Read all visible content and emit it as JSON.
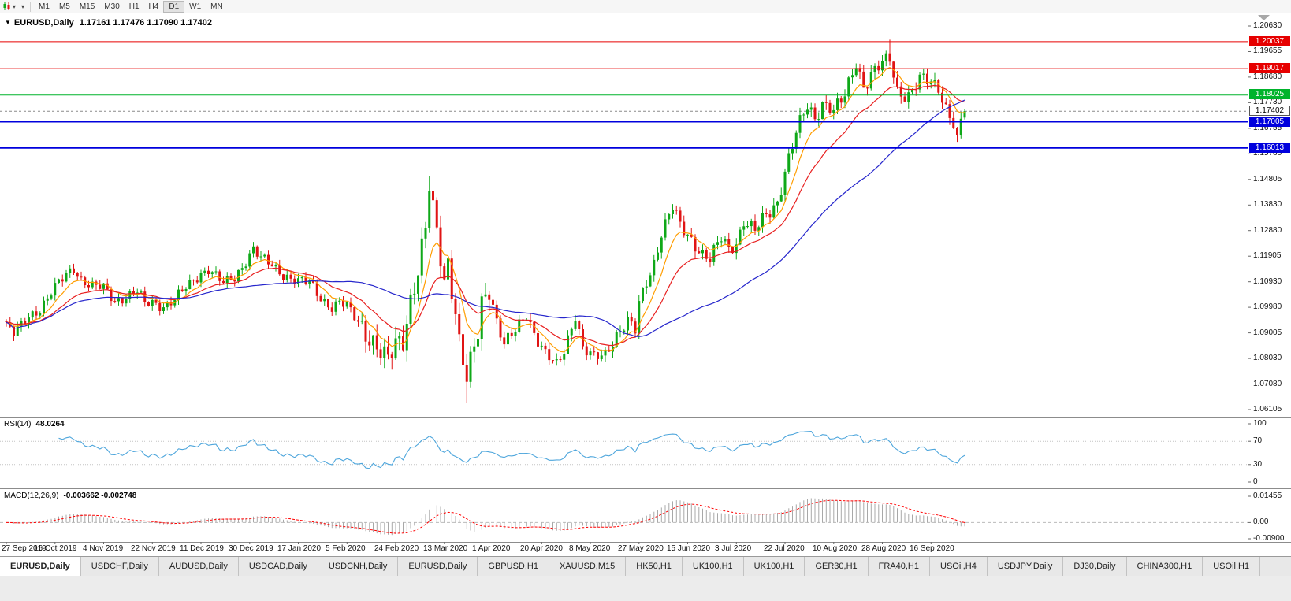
{
  "toolbar": {
    "caret_glyph": "▾",
    "timeframes": [
      "M1",
      "M5",
      "M15",
      "M30",
      "H1",
      "H4",
      "D1",
      "W1",
      "MN"
    ],
    "active_timeframe": "D1"
  },
  "chart": {
    "marker_glyph": "▼",
    "symbol_title": "EURUSD,Daily",
    "ohlc_text": "1.17161 1.17476 1.17090 1.17402",
    "current_price": {
      "label": "1.17402",
      "value": 1.17402
    }
  },
  "price_axis": {
    "ticks": [
      "1.20630",
      "1.19655",
      "1.18680",
      "1.17730",
      "1.16755",
      "1.15780",
      "1.14805",
      "1.13830",
      "1.12880",
      "1.11905",
      "1.10930",
      "1.09980",
      "1.09005",
      "1.08030",
      "1.07080",
      "1.06105"
    ]
  },
  "levels": [
    {
      "label": "1.20037",
      "value": 1.20037,
      "color": "#e60000",
      "thickness": 1
    },
    {
      "label": "1.19017",
      "value": 1.19017,
      "color": "#e60000",
      "thickness": 1
    },
    {
      "label": "1.18025",
      "value": 1.18025,
      "color": "#00b32c",
      "thickness": 2
    },
    {
      "label": "1.17005",
      "value": 1.17005,
      "color": "#0000dd",
      "thickness": 2
    },
    {
      "label": "1.16013",
      "value": 1.16013,
      "color": "#0000dd",
      "thickness": 2
    }
  ],
  "rsi_panel": {
    "name_label": "RSI(14)",
    "value_label": "48.0264",
    "line_color": "#4ea6dc",
    "levels": [
      {
        "label": "100",
        "value": 100
      },
      {
        "label": "70",
        "value": 70
      },
      {
        "label": "30",
        "value": 30
      },
      {
        "label": "0",
        "value": 0
      }
    ]
  },
  "macd_panel": {
    "name_label": "MACD(12,26,9)",
    "value_label": "-0.003662 -0.002748",
    "histogram_color": "#a8a8a8",
    "signal_color": "#ff0000",
    "ticks": [
      {
        "label": "0.01455",
        "value": 0.01455
      },
      {
        "label": "0.00",
        "value": 0
      },
      {
        "label": "-0.00900",
        "value": -0.009
      }
    ]
  },
  "time_axis": {
    "bars_per_label": 13,
    "labels": [
      "27 Sep 2019",
      "16 Oct 2019",
      "4 Nov 2019",
      "22 Nov 2019",
      "11 Dec 2019",
      "30 Dec 2019",
      "17 Jan 2020",
      "5 Feb 2020",
      "24 Feb 2020",
      "13 Mar 2020",
      "1 Apr 2020",
      "20 Apr 2020",
      "8 May 2020",
      "27 May 2020",
      "15 Jun 2020",
      "3 Jul 2020",
      "22 Jul 2020",
      "10 Aug 2020",
      "28 Aug 2020",
      "16 Sep 2020"
    ]
  },
  "tabs": {
    "active_index": 0,
    "items": [
      "EURUSD,Daily",
      "USDCHF,Daily",
      "AUDUSD,Daily",
      "USDCAD,Daily",
      "USDCNH,Daily",
      "EURUSD,Daily",
      "GBPUSD,H1",
      "XAUUSD,M15",
      "HK50,H1",
      "UK100,H1",
      "UK100,H1",
      "GER30,H1",
      "FRA40,H1",
      "USOil,H4",
      "USDJPY,Daily",
      "DJ30,Daily",
      "CHINA300,H1",
      "USOil,H1"
    ]
  },
  "chart_data": {
    "type": "candlestick",
    "symbol": "EURUSD",
    "timeframe": "Daily",
    "bars": 257,
    "y_domain": [
      1.06105,
      1.2063
    ],
    "last_candle": {
      "open": 1.17161,
      "high": 1.17476,
      "low": 1.1709,
      "close": 1.17402
    },
    "candle_up_color": "#0fa818",
    "candle_down_color": "#e01414",
    "rsi_period": 14,
    "macd_params": [
      12,
      26,
      9
    ],
    "moving_averages": [
      {
        "name": "fast",
        "method": "ema",
        "period": 8,
        "color": "#ff9d00"
      },
      {
        "name": "medium",
        "method": "ema",
        "period": 20,
        "color": "#e82020"
      },
      {
        "name": "slow",
        "method": "sma",
        "period": 50,
        "color": "#2626cc"
      }
    ],
    "close_path_anchors": [
      [
        0,
        1.093
      ],
      [
        2,
        1.0895
      ],
      [
        4,
        1.0925
      ],
      [
        6,
        1.0965
      ],
      [
        9,
        1.0995
      ],
      [
        13,
        1.107
      ],
      [
        16,
        1.112
      ],
      [
        18,
        1.115
      ],
      [
        20,
        1.1105
      ],
      [
        23,
        1.1075
      ],
      [
        26,
        1.107
      ],
      [
        29,
        1.1025
      ],
      [
        32,
        1.104
      ],
      [
        35,
        1.1055
      ],
      [
        37,
        1.101
      ],
      [
        39,
        1.1018
      ],
      [
        42,
        1.1005
      ],
      [
        45,
        1.1025
      ],
      [
        48,
        1.107
      ],
      [
        52,
        1.113
      ],
      [
        54,
        1.1145
      ],
      [
        56,
        1.1115
      ],
      [
        58,
        1.1085
      ],
      [
        61,
        1.111
      ],
      [
        63,
        1.1155
      ],
      [
        65,
        1.12
      ],
      [
        66,
        1.122
      ],
      [
        68,
        1.118
      ],
      [
        71,
        1.1155
      ],
      [
        74,
        1.1125
      ],
      [
        78,
        1.1095
      ],
      [
        81,
        1.109
      ],
      [
        84,
        1.1035
      ],
      [
        87,
        1.1
      ],
      [
        89,
        1.1015
      ],
      [
        91,
        1.0998
      ],
      [
        93,
        1.096
      ],
      [
        96,
        1.0915
      ],
      [
        99,
        1.085
      ],
      [
        101,
        1.08
      ],
      [
        102,
        1.0785
      ],
      [
        104,
        1.0855
      ],
      [
        106,
        1.0885
      ],
      [
        108,
        1.1035
      ],
      [
        110,
        1.114
      ],
      [
        112,
        1.1285
      ],
      [
        113,
        1.1445
      ],
      [
        114,
        1.1355
      ],
      [
        115,
        1.128
      ],
      [
        117,
        1.1105
      ],
      [
        118,
        1.118
      ],
      [
        120,
        1.099
      ],
      [
        121,
        1.0865
      ],
      [
        123,
        1.0715
      ],
      [
        124,
        1.077
      ],
      [
        126,
        1.09
      ],
      [
        127,
        1.1015
      ],
      [
        129,
        1.1085
      ],
      [
        131,
        1.095
      ],
      [
        133,
        1.0855
      ],
      [
        136,
        1.0905
      ],
      [
        139,
        1.0975
      ],
      [
        141,
        1.0905
      ],
      [
        144,
        1.082
      ],
      [
        147,
        1.0772
      ],
      [
        149,
        1.0835
      ],
      [
        152,
        1.0975
      ],
      [
        154,
        1.0845
      ],
      [
        157,
        1.08
      ],
      [
        160,
        1.082
      ],
      [
        163,
        1.09
      ],
      [
        166,
        1.0945
      ],
      [
        168,
        1.0905
      ],
      [
        169,
        1.1005
      ],
      [
        171,
        1.1095
      ],
      [
        173,
        1.117
      ],
      [
        175,
        1.1285
      ],
      [
        178,
        1.1375
      ],
      [
        180,
        1.13
      ],
      [
        183,
        1.1255
      ],
      [
        186,
        1.1205
      ],
      [
        188,
        1.118
      ],
      [
        191,
        1.1255
      ],
      [
        193,
        1.1218
      ],
      [
        195,
        1.1245
      ],
      [
        197,
        1.133
      ],
      [
        200,
        1.1285
      ],
      [
        203,
        1.134
      ],
      [
        206,
        1.14
      ],
      [
        208,
        1.152
      ],
      [
        211,
        1.1655
      ],
      [
        214,
        1.1755
      ],
      [
        216,
        1.1715
      ],
      [
        218,
        1.1778
      ],
      [
        220,
        1.176
      ],
      [
        221,
        1.1738
      ],
      [
        224,
        1.1792
      ],
      [
        227,
        1.193
      ],
      [
        229,
        1.184
      ],
      [
        231,
        1.188
      ],
      [
        233,
        1.1905
      ],
      [
        236,
        1.1935
      ],
      [
        238,
        1.182
      ],
      [
        241,
        1.1805
      ],
      [
        244,
        1.1858
      ],
      [
        247,
        1.1845
      ],
      [
        249,
        1.1832
      ],
      [
        251,
        1.176
      ],
      [
        253,
        1.17
      ],
      [
        254,
        1.1628
      ],
      [
        255,
        1.1695
      ],
      [
        256,
        1.17402
      ]
    ],
    "volatility_segments": [
      [
        0,
        94,
        0.0035
      ],
      [
        95,
        130,
        0.008
      ],
      [
        131,
        168,
        0.0042
      ],
      [
        169,
        200,
        0.0045
      ],
      [
        201,
        240,
        0.005
      ],
      [
        241,
        256,
        0.0048
      ]
    ],
    "wick_overrides": {
      "113": {
        "high": 1.1495
      },
      "123": {
        "low": 1.0636
      },
      "236": {
        "high": 1.2011
      }
    }
  }
}
